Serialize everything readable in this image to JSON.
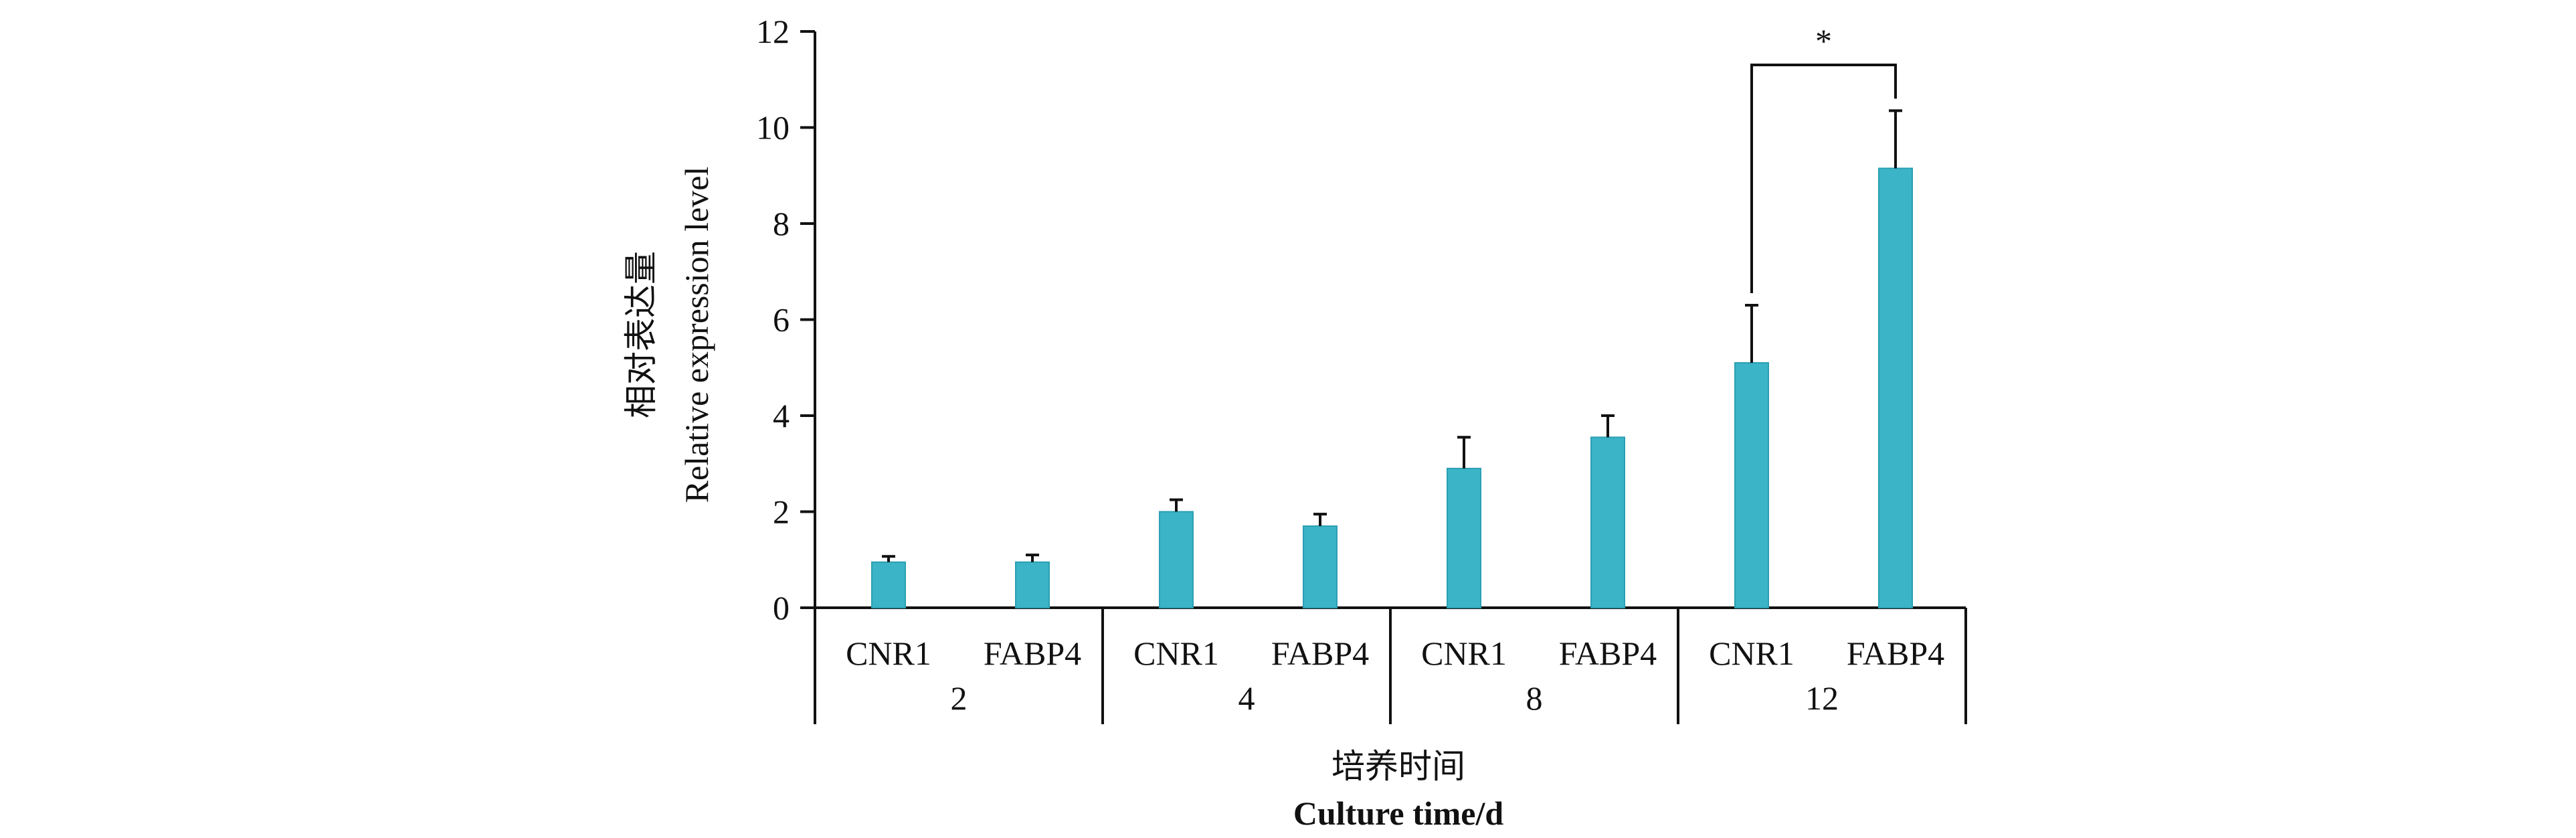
{
  "chart_data": {
    "type": "bar",
    "ylim": [
      0,
      12
    ],
    "yticks": [
      0,
      2,
      4,
      6,
      8,
      10,
      12
    ],
    "ylabel_cn": "相对表达量",
    "ylabel_en": "Relative expression level",
    "xlabel_cn": "培养时间",
    "xlabel_en": "Culture time/d",
    "groups": [
      {
        "label": "2",
        "bars": [
          {
            "category": "CNR1",
            "value": 0.95,
            "error": 0.12
          },
          {
            "category": "FABP4",
            "value": 0.95,
            "error": 0.15
          }
        ]
      },
      {
        "label": "4",
        "bars": [
          {
            "category": "CNR1",
            "value": 2.0,
            "error": 0.25
          },
          {
            "category": "FABP4",
            "value": 1.7,
            "error": 0.25
          }
        ]
      },
      {
        "label": "8",
        "bars": [
          {
            "category": "CNR1",
            "value": 2.9,
            "error": 0.65
          },
          {
            "category": "FABP4",
            "value": 3.55,
            "error": 0.45
          }
        ]
      },
      {
        "label": "12",
        "bars": [
          {
            "category": "CNR1",
            "value": 5.1,
            "error": 1.2
          },
          {
            "category": "FABP4",
            "value": 9.15,
            "error": 1.2
          }
        ]
      }
    ],
    "annotations": [
      {
        "text": "*",
        "group": 3,
        "between": [
          "CNR1",
          "FABP4"
        ]
      }
    ],
    "bar_color": "#3cb4c8",
    "bar_edge_color": "#2a9fb2",
    "error_color": "#111111",
    "axis_color": "#111111",
    "grid": false
  }
}
